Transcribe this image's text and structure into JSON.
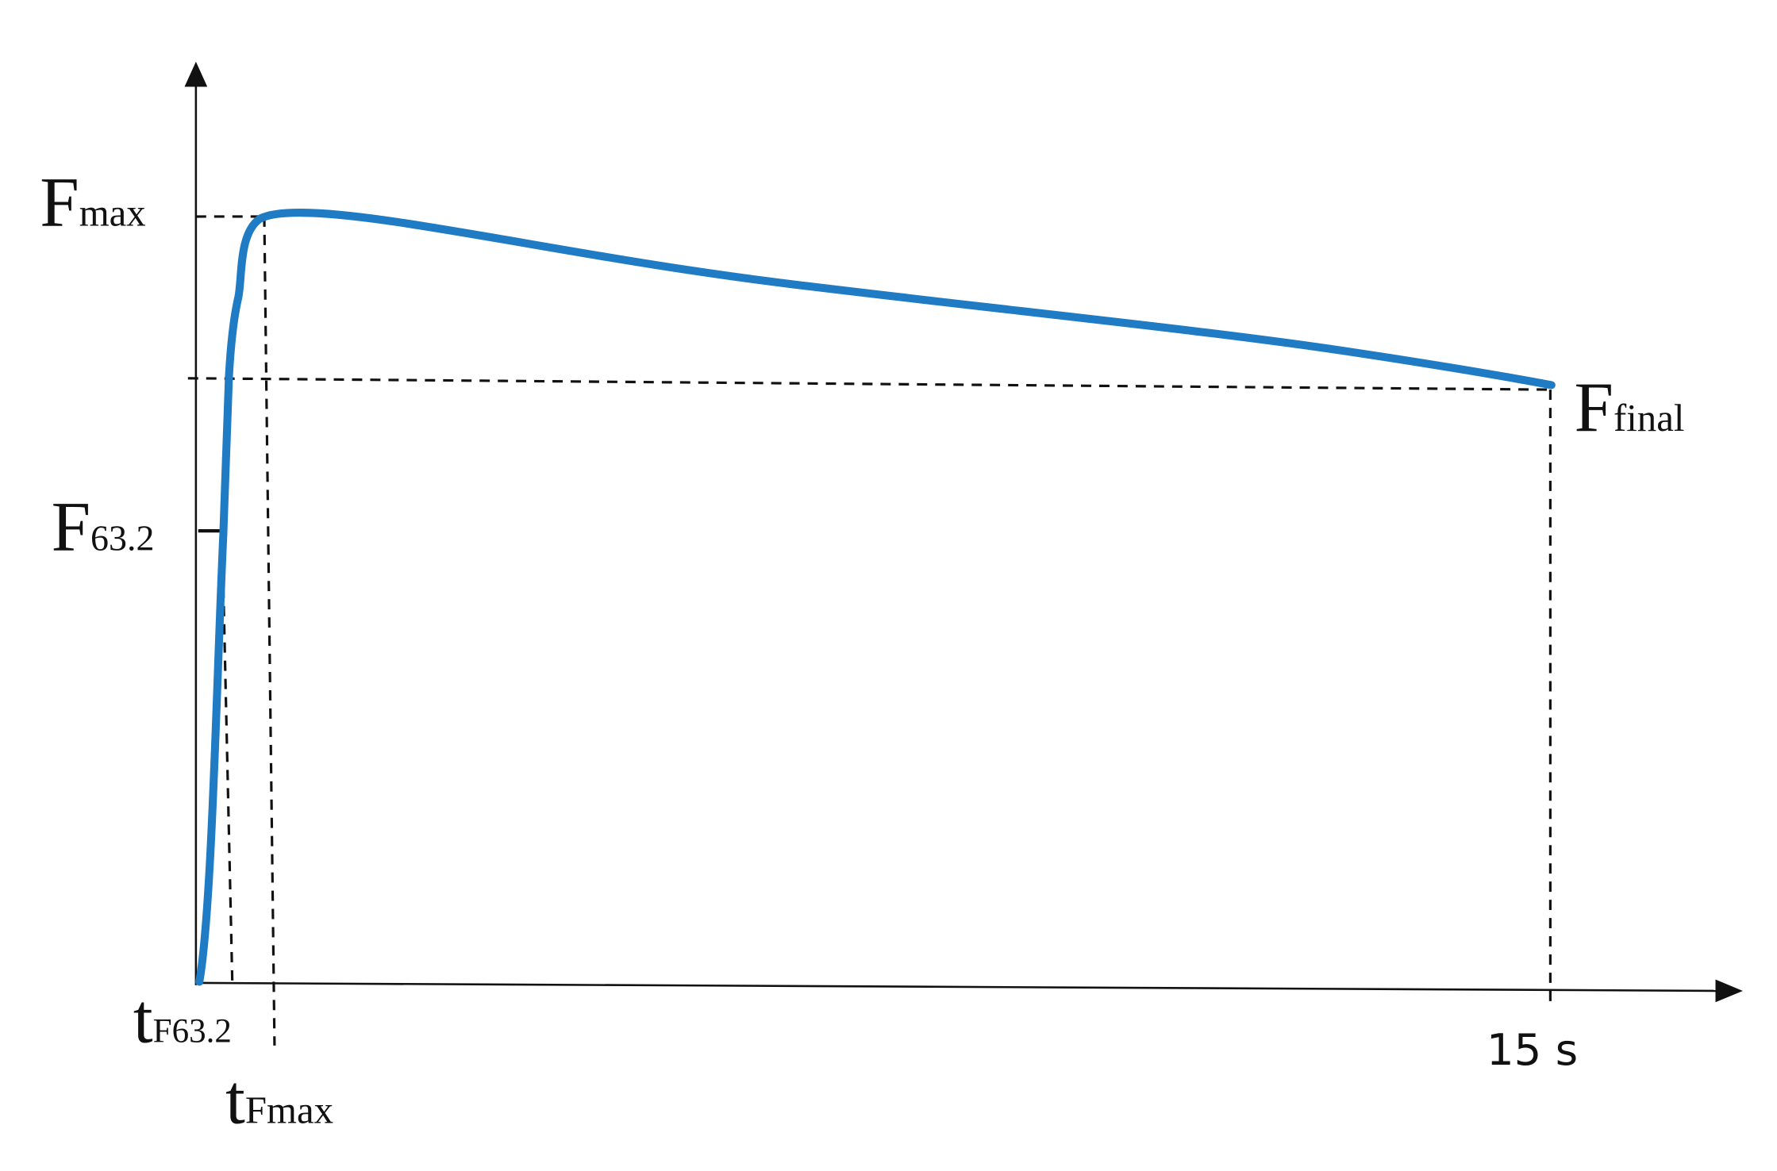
{
  "labels": {
    "f_max": {
      "main": "F",
      "sub": "max"
    },
    "f_63_2": {
      "main": "F",
      "sub": "63.2"
    },
    "f_final": {
      "main": "F",
      "sub": "final"
    },
    "t_f_63_2": {
      "main": "t",
      "sub": "F63.2"
    },
    "t_f_max": {
      "main": "t",
      "sub": "Fmax"
    },
    "end_time": "15 s"
  }
}
